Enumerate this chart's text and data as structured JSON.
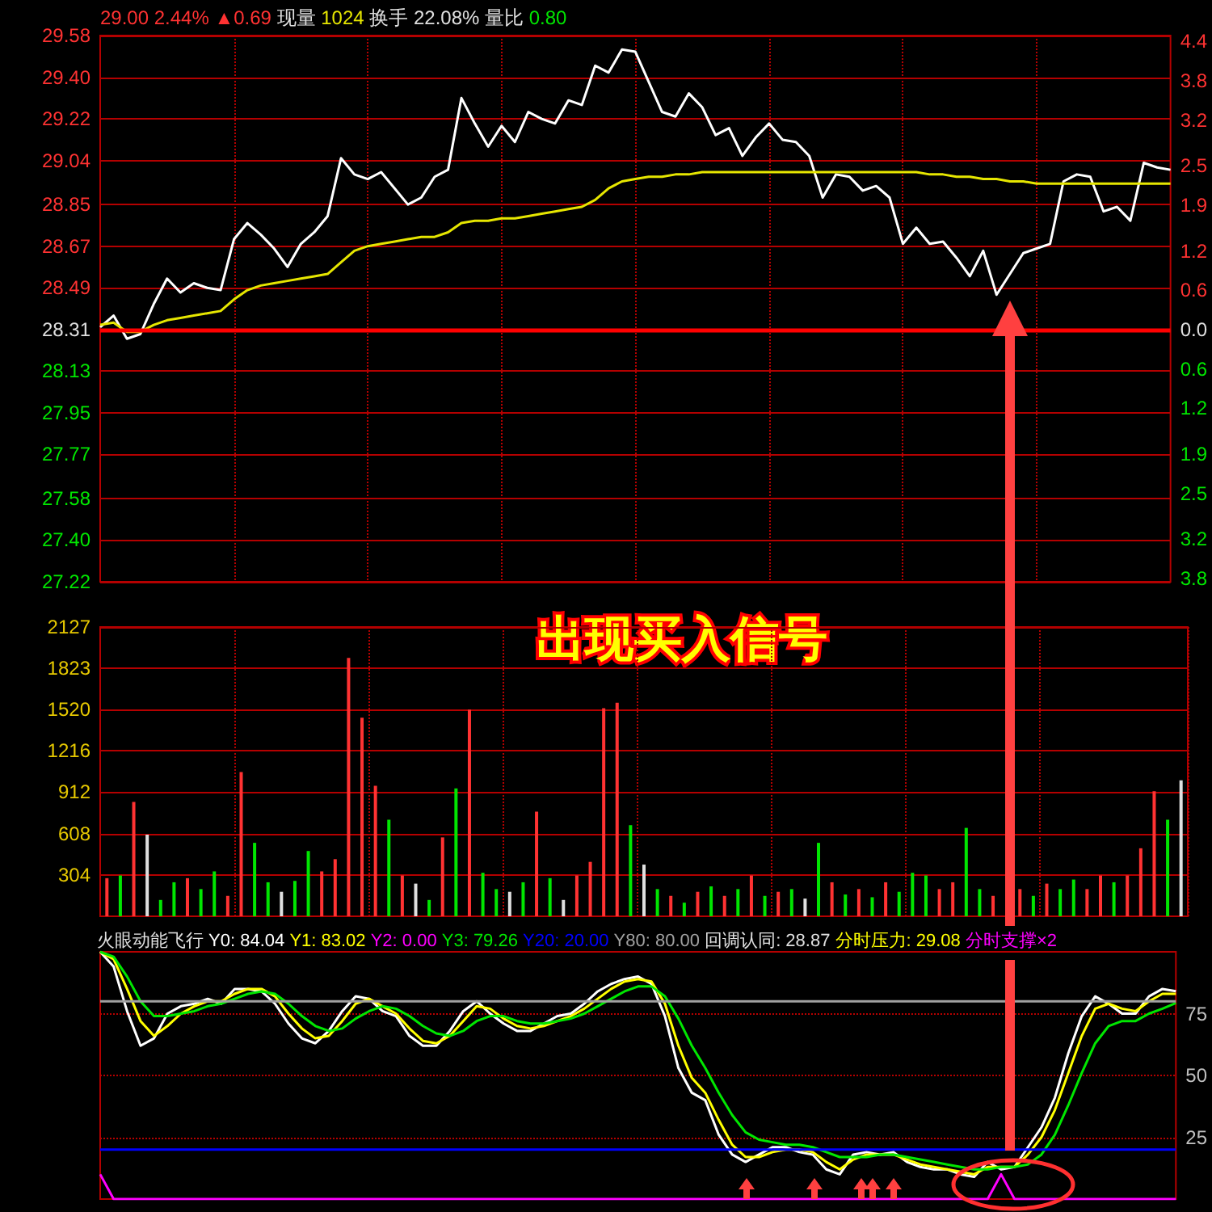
{
  "chart_data": [
    {
      "type": "line",
      "title": "29.00 2.44% ▲0.69 现量 1024 换手 22.08% 量比 0.80",
      "categories": [
        null,
        null,
        null,
        null,
        null,
        null,
        null,
        null,
        null,
        null,
        null,
        null,
        null,
        null,
        null,
        null,
        null,
        null,
        null,
        null,
        null,
        null,
        null,
        null,
        null,
        null,
        null,
        null,
        null,
        null,
        null,
        null,
        null,
        null,
        null,
        null,
        null,
        null,
        null,
        null,
        null,
        null,
        null,
        null,
        null,
        null,
        null,
        null,
        null,
        null,
        null,
        null,
        null,
        null,
        null,
        null,
        null,
        null,
        null,
        null,
        null,
        null,
        null,
        null,
        null,
        null,
        null,
        null,
        null,
        null,
        null,
        null,
        null,
        null,
        null,
        null,
        null,
        null,
        null,
        null,
        null
      ],
      "series": [
        {
          "color": "#ffffff",
          "values": [
            28.32,
            28.37,
            28.27,
            28.29,
            28.42,
            28.53,
            28.47,
            28.51,
            28.49,
            28.48,
            28.7,
            28.77,
            28.72,
            28.66,
            28.58,
            28.68,
            28.73,
            28.8,
            29.05,
            28.98,
            28.96,
            28.99,
            28.92,
            28.85,
            28.88,
            28.97,
            29.0,
            29.31,
            29.2,
            29.1,
            29.19,
            29.12,
            29.25,
            29.22,
            29.2,
            29.3,
            29.28,
            29.45,
            29.42,
            29.52,
            29.51,
            29.38,
            29.25,
            29.23,
            29.33,
            29.27,
            29.15,
            29.18,
            29.06,
            29.14,
            29.2,
            29.13,
            29.12,
            29.06,
            28.88,
            28.98,
            28.97,
            28.91,
            28.93,
            28.88,
            28.68,
            28.75,
            28.68,
            28.69,
            28.62,
            28.54,
            28.65,
            28.46,
            28.55,
            28.64,
            28.66,
            28.68,
            28.95,
            28.98,
            28.97,
            28.82,
            28.84,
            28.78,
            29.03,
            29.01,
            29.0
          ]
        },
        {
          "color": "#e6e600",
          "values": [
            28.33,
            28.34,
            28.3,
            28.3,
            28.33,
            28.35,
            28.36,
            28.37,
            28.38,
            28.39,
            28.44,
            28.48,
            28.5,
            28.51,
            28.52,
            28.53,
            28.54,
            28.55,
            28.6,
            28.65,
            28.67,
            28.68,
            28.69,
            28.7,
            28.71,
            28.71,
            28.73,
            28.77,
            28.78,
            28.78,
            28.79,
            28.79,
            28.8,
            28.81,
            28.82,
            28.83,
            28.84,
            28.87,
            28.92,
            28.95,
            28.96,
            28.97,
            28.97,
            28.98,
            28.98,
            28.99,
            28.99,
            28.99,
            28.99,
            28.99,
            28.99,
            28.99,
            28.99,
            28.99,
            28.99,
            28.99,
            28.99,
            28.99,
            28.99,
            28.99,
            28.99,
            28.99,
            28.98,
            28.98,
            28.97,
            28.97,
            28.96,
            28.96,
            28.95,
            28.95,
            28.94,
            28.94,
            28.94,
            28.94,
            28.94,
            28.94,
            28.94,
            28.94,
            28.94,
            28.94,
            28.94
          ]
        }
      ],
      "ylim": [
        27.22,
        29.58
      ],
      "yticks": [
        29.58,
        {
          "value": 29.4,
          "label": "29.40"
        },
        29.22,
        29.04,
        28.85,
        28.67,
        28.49,
        28.31,
        28.13,
        27.95,
        27.77,
        27.58,
        {
          "value": 27.4,
          "label": "27.40"
        },
        27.22
      ],
      "y2lim": [
        -3.85,
        4.49
      ],
      "y2ticks": [
        4.4,
        3.8,
        3.2,
        2.5,
        1.9,
        1.2,
        0.6,
        {
          "value": 0,
          "label": "0.0"
        },
        {
          "value": -0.6,
          "label": "0.6"
        },
        {
          "value": -1.2,
          "label": "1.2"
        },
        {
          "value": -1.9,
          "label": "1.9"
        },
        {
          "value": -2.5,
          "label": "2.5"
        },
        {
          "value": -3.2,
          "label": "3.2"
        },
        {
          "value": -3.8,
          "label": "3.8"
        }
      ],
      "ref_lines": [
        {
          "axis": "y",
          "value": 28.31,
          "color": "#ff0000"
        }
      ],
      "grid": true
    },
    {
      "type": "bar",
      "categories": [
        null,
        null,
        null,
        null,
        null,
        null,
        null,
        null,
        null,
        null,
        null,
        null,
        null,
        null,
        null,
        null,
        null,
        null,
        null,
        null,
        null,
        null,
        null,
        null,
        null,
        null,
        null,
        null,
        null,
        null,
        null,
        null,
        null,
        null,
        null,
        null,
        null,
        null,
        null,
        null,
        null,
        null,
        null,
        null,
        null,
        null,
        null,
        null,
        null,
        null,
        null,
        null,
        null,
        null,
        null,
        null,
        null,
        null,
        null,
        null,
        null,
        null,
        null,
        null,
        null,
        null,
        null,
        null,
        null,
        null,
        null,
        null,
        null,
        null,
        null,
        null,
        null,
        null,
        null,
        null,
        null
      ],
      "values": [
        280,
        300,
        840,
        600,
        120,
        250,
        280,
        200,
        330,
        150,
        1060,
        540,
        250,
        180,
        260,
        480,
        330,
        420,
        1900,
        1460,
        960,
        710,
        300,
        240,
        120,
        580,
        940,
        1520,
        320,
        200,
        180,
        250,
        770,
        280,
        120,
        300,
        400,
        1530,
        1570,
        670,
        380,
        200,
        150,
        100,
        180,
        220,
        150,
        200,
        300,
        150,
        180,
        200,
        130,
        540,
        250,
        160,
        200,
        140,
        250,
        180,
        320,
        300,
        200,
        250,
        650,
        200,
        150,
        null,
        200,
        150,
        240,
        200,
        270,
        200,
        300,
        250,
        300,
        500,
        920,
        710,
        1000
      ],
      "colors": [
        "#ff3232",
        "#00e600",
        "#ff3232",
        "#e0e0e0",
        "#00e600",
        "#00e600",
        "#ff3232",
        "#00e600",
        "#00e600",
        "#ff3232",
        "#ff3232",
        "#00e600",
        "#00e600",
        "#e0e0e0",
        "#00e600",
        "#00e600",
        "#ff3232",
        "#ff3232",
        "#ff3232",
        "#ff3232",
        "#ff3232",
        "#00e600",
        "#ff3232",
        "#e0e0e0",
        "#00e600",
        "#ff3232",
        "#00e600",
        "#ff3232",
        "#00e600",
        "#00e600",
        "#e0e0e0",
        "#00e600",
        "#ff3232",
        "#00e600",
        "#e0e0e0",
        "#ff3232",
        "#ff3232",
        "#ff3232",
        "#ff3232",
        "#00e600",
        "#e0e0e0",
        "#00e600",
        "#ff3232",
        "#00e600",
        "#ff3232",
        "#00e600",
        "#ff3232",
        "#00e600",
        "#ff3232",
        "#00e600",
        "#ff3232",
        "#00e600",
        "#e0e0e0",
        "#00e600",
        "#ff3232",
        "#00e600",
        "#ff3232",
        "#00e600",
        "#ff3232",
        "#00e600",
        "#00e600",
        "#00e600",
        "#ff3232",
        "#ff3232",
        "#00e600",
        "#00e600",
        "#ff3232",
        "#ff3232",
        "#ff3232",
        "#00e600",
        "#ff3232",
        "#00e600",
        "#00e600",
        "#ff3232",
        "#ff3232",
        "#00e600",
        "#ff3232",
        "#ff3232",
        "#ff3232",
        "#00e600",
        "#e0e0e0"
      ],
      "ylim": [
        0,
        2127
      ],
      "yticks": [
        304,
        608,
        912,
        1216,
        1520,
        1823,
        2127
      ],
      "grid": true,
      "annotations": [
        "出现买入信号"
      ]
    },
    {
      "type": "line",
      "title": "火眼动能飞行",
      "categories": [
        null,
        null,
        null,
        null,
        null,
        null,
        null,
        null,
        null,
        null,
        null,
        null,
        null,
        null,
        null,
        null,
        null,
        null,
        null,
        null,
        null,
        null,
        null,
        null,
        null,
        null,
        null,
        null,
        null,
        null,
        null,
        null,
        null,
        null,
        null,
        null,
        null,
        null,
        null,
        null,
        null,
        null,
        null,
        null,
        null,
        null,
        null,
        null,
        null,
        null,
        null,
        null,
        null,
        null,
        null,
        null,
        null,
        null,
        null,
        null,
        null,
        null,
        null,
        null,
        null,
        null,
        null,
        null,
        null,
        null,
        null,
        null,
        null,
        null,
        null,
        null,
        null,
        null,
        null,
        null,
        null
      ],
      "series": [
        {
          "name": "Y0: 84.04",
          "color": "#ffffff",
          "values": [
            100,
            94,
            76,
            62,
            65,
            75,
            78,
            79,
            81,
            79,
            85,
            85,
            84,
            79,
            71,
            65,
            63,
            68,
            76,
            82,
            81,
            76,
            74,
            66,
            62,
            62,
            68,
            76,
            80,
            75,
            71,
            68,
            68,
            71,
            74,
            75,
            79,
            84,
            87,
            89,
            90,
            87,
            74,
            53,
            43,
            40,
            26,
            18,
            15,
            18,
            21,
            21,
            19,
            18,
            12,
            10,
            18,
            19,
            18,
            19,
            15,
            13,
            12,
            12,
            10,
            9,
            15,
            12,
            13,
            21,
            29,
            41,
            59,
            74,
            82,
            79,
            75,
            75,
            82,
            85,
            84.04
          ]
        },
        {
          "name": "Y1: 83.02",
          "color": "#ffff00",
          "values": [
            100,
            97,
            85,
            72,
            66,
            70,
            75,
            78,
            80,
            80,
            83,
            85,
            85,
            82,
            75,
            69,
            65,
            66,
            72,
            79,
            81,
            78,
            75,
            69,
            64,
            63,
            66,
            72,
            78,
            77,
            73,
            70,
            69,
            70,
            72,
            74,
            77,
            81,
            85,
            88,
            89,
            88,
            79,
            62,
            49,
            43,
            32,
            22,
            17,
            17,
            19,
            20,
            20,
            19,
            15,
            12,
            16,
            18,
            18,
            18,
            16,
            14,
            13,
            12,
            11,
            10,
            13,
            13,
            13,
            18,
            25,
            36,
            51,
            66,
            77,
            79,
            77,
            76,
            80,
            83,
            83.02
          ]
        },
        {
          "name": "Y2: 0.00",
          "color": "#ff00ff",
          "values": [
            10,
            0,
            0,
            0,
            0,
            0,
            0,
            0,
            0,
            0,
            0,
            0,
            0,
            0,
            0,
            0,
            0,
            0,
            0,
            0,
            0,
            0,
            0,
            0,
            0,
            0,
            0,
            0,
            0,
            0,
            0,
            0,
            0,
            0,
            0,
            0,
            0,
            0,
            0,
            0,
            0,
            0,
            0,
            0,
            0,
            0,
            0,
            0,
            0,
            0,
            0,
            0,
            0,
            0,
            0,
            0,
            0,
            0,
            0,
            0,
            0,
            0,
            0,
            0,
            0,
            0,
            0,
            10,
            0,
            0,
            0,
            0,
            0,
            0,
            0,
            0,
            0,
            0,
            0,
            0,
            0
          ]
        },
        {
          "name": "Y3: 79.26",
          "color": "#00e600",
          "values": [
            100,
            98,
            90,
            80,
            74,
            74,
            75,
            76,
            78,
            79,
            81,
            83,
            84,
            83,
            79,
            74,
            70,
            68,
            69,
            73,
            76,
            78,
            77,
            74,
            70,
            67,
            66,
            68,
            72,
            74,
            74,
            72,
            71,
            71,
            72,
            73,
            75,
            78,
            81,
            84,
            86,
            86,
            82,
            73,
            62,
            53,
            43,
            34,
            27,
            24,
            23,
            22,
            22,
            21,
            19,
            17,
            17,
            17,
            18,
            18,
            17,
            16,
            15,
            14,
            13,
            12,
            12,
            13,
            13,
            14,
            18,
            26,
            38,
            51,
            63,
            70,
            72,
            72,
            75,
            77,
            79.26
          ]
        },
        {
          "name": "Y20: 20.00",
          "color": "#0000ff",
          "values": [
            20,
            20,
            20,
            20,
            20,
            20,
            20,
            20,
            20,
            20,
            20,
            20,
            20,
            20,
            20,
            20,
            20,
            20,
            20,
            20,
            20,
            20,
            20,
            20,
            20,
            20,
            20,
            20,
            20,
            20,
            20,
            20,
            20,
            20,
            20,
            20,
            20,
            20,
            20,
            20,
            20,
            20,
            20,
            20,
            20,
            20,
            20,
            20,
            20,
            20,
            20,
            20,
            20,
            20,
            20,
            20,
            20,
            20,
            20,
            20,
            20,
            20,
            20,
            20,
            20,
            20,
            20,
            20,
            20,
            20,
            20,
            20,
            20,
            20,
            20,
            20,
            20,
            20,
            20,
            20,
            20
          ]
        },
        {
          "name": "Y80: 80.00",
          "color": "#a0a0a0",
          "values": [
            80,
            80,
            80,
            80,
            80,
            80,
            80,
            80,
            80,
            80,
            80,
            80,
            80,
            80,
            80,
            80,
            80,
            80,
            80,
            80,
            80,
            80,
            80,
            80,
            80,
            80,
            80,
            80,
            80,
            80,
            80,
            80,
            80,
            80,
            80,
            80,
            80,
            80,
            80,
            80,
            80,
            80,
            80,
            80,
            80,
            80,
            80,
            80,
            80,
            80,
            80,
            80,
            80,
            80,
            80,
            80,
            80,
            80,
            80,
            80,
            80,
            80,
            80,
            80,
            80,
            80,
            80,
            80,
            80,
            80,
            80,
            80,
            80,
            80,
            80,
            80,
            80,
            80,
            80,
            80,
            80
          ]
        }
      ],
      "ylim": [
        0,
        100
      ],
      "yticks": [
        25,
        50,
        75
      ],
      "grid": "y",
      "annotations": [
        "回调认同: 28.87",
        "分时压力: 29.08",
        "分时支撑×2"
      ]
    }
  ]
}
